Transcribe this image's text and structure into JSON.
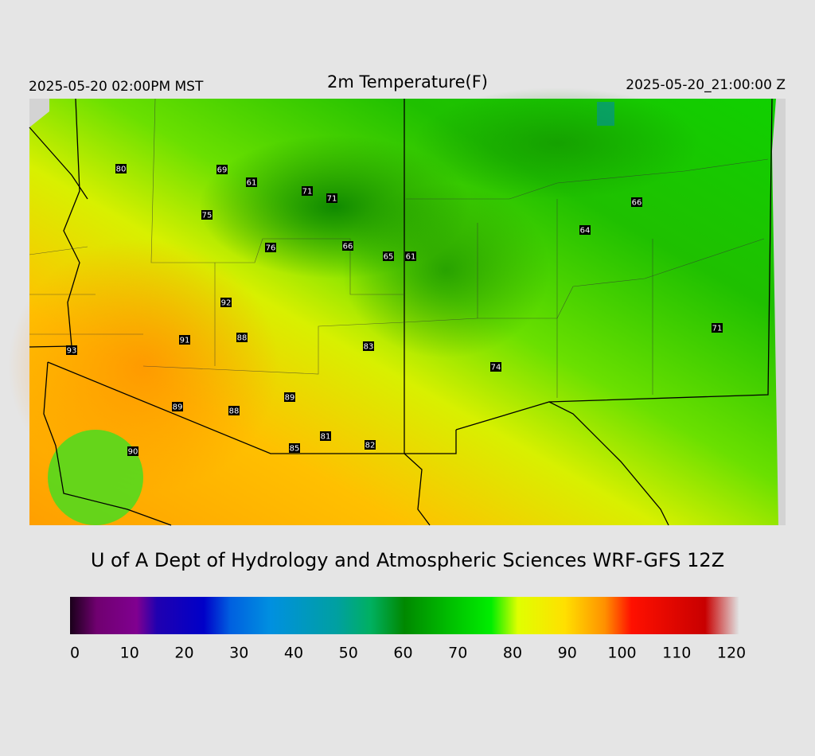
{
  "header": {
    "left": "2025-05-20 02:00PM MST",
    "title": "2m Temperature(F)",
    "right": "2025-05-20_21:00:00 Z"
  },
  "stations": [
    "80",
    "69",
    "61",
    "71",
    "71",
    "75",
    "76",
    "66",
    "65",
    "61",
    "92",
    "91",
    "88",
    "83",
    "93",
    "89",
    "89",
    "88",
    "81",
    "85",
    "82",
    "90",
    "66",
    "64",
    "71",
    "74"
  ],
  "credit": "U of A Dept of Hydrology and Atmospheric Sciences WRF-GFS 12Z",
  "colorbar": {
    "range": [
      0,
      120
    ],
    "ticks": [
      0,
      10,
      20,
      30,
      40,
      50,
      60,
      70,
      80,
      90,
      100,
      110,
      120
    ]
  }
}
